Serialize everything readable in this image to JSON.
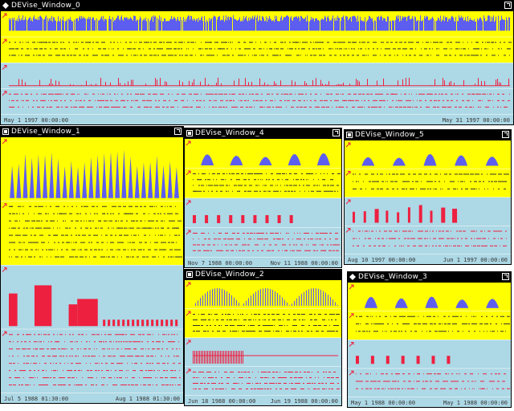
{
  "colors": {
    "yellow": "#ffff00",
    "blue": "#add8e6",
    "bar_blue": "#5d5df0",
    "bar_red": "#ee2040",
    "title_bg": "#000000",
    "title_fg": "#ffffff"
  },
  "windows": [
    {
      "id": "w0",
      "title": "DEVise_Window_0",
      "icon": "diamond-icon",
      "axis_left": "May 1 1997 00:00:00",
      "axis_right": "May 31 1997 00:00:00",
      "panels": [
        "yellow",
        "yellow",
        "blue",
        "blue"
      ],
      "charts": [
        "dense-blue",
        "lines",
        "red-sparse",
        "lines-red"
      ]
    },
    {
      "id": "w1",
      "title": "DEVise_Window_1",
      "icon": "window-icon",
      "axis_left": "Jul 5 1988 01:30:00",
      "axis_right": "Aug 1 1988 01:30:00",
      "panels": [
        "yellow",
        "yellow",
        "blue",
        "blue"
      ],
      "charts": [
        "periodic-blue",
        "lines",
        "red-blocks",
        "lines-red"
      ]
    },
    {
      "id": "w4",
      "title": "DEVise_Window_4",
      "icon": "window-icon",
      "axis_left": "Nov 7 1988 00:00:00",
      "axis_right": "Nov 11 1988 00:00:00",
      "panels": [
        "yellow",
        "yellow",
        "blue",
        "blue"
      ],
      "charts": [
        "humps-blue",
        "lines",
        "red-row",
        "lines-red"
      ]
    },
    {
      "id": "w5",
      "title": "DEVise_Window_5",
      "icon": "window-icon",
      "axis_left": "Aug 10 1997 00:00:00",
      "axis_right": "Jun 1 1997 00:00:00",
      "panels": [
        "yellow",
        "yellow",
        "blue",
        "blue"
      ],
      "charts": [
        "humps-blue",
        "lines",
        "red-tall",
        "lines-red"
      ]
    },
    {
      "id": "w2",
      "title": "DEVise_Window_2",
      "icon": "window-icon",
      "axis_left": "Jun 18 1988 00:00:00",
      "axis_right": "Jun 19 1988 00:00:00",
      "panels": [
        "yellow",
        "yellow",
        "blue",
        "blue"
      ],
      "charts": [
        "spikes-blue",
        "lines",
        "red-comb",
        "lines-red"
      ]
    },
    {
      "id": "w3",
      "title": "DEVise_Window_3",
      "icon": "diamond-icon",
      "axis_left": "May 1 1988 00:00:00",
      "axis_right": "May 1 1988 00:00:00",
      "panels": [
        "yellow",
        "yellow",
        "blue",
        "blue"
      ],
      "charts": [
        "humps-blue",
        "lines",
        "red-row2",
        "lines-red"
      ]
    }
  ]
}
